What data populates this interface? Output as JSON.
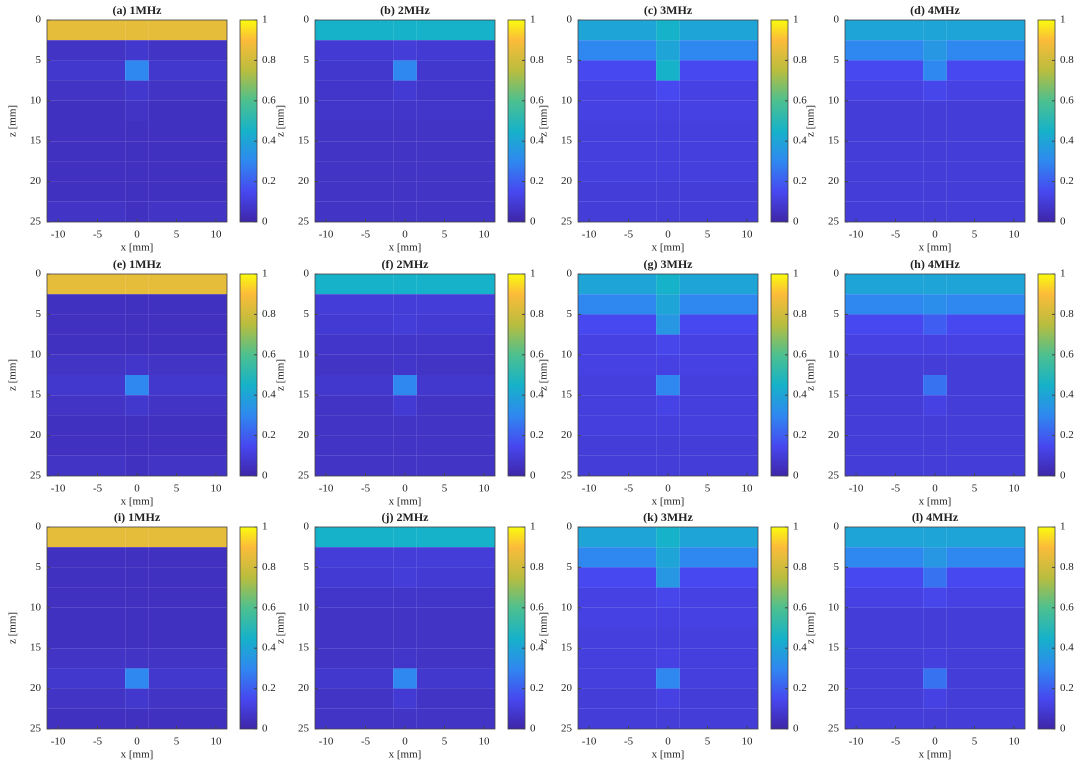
{
  "chart_data": [
    {
      "type": "heatmap",
      "title": "(a) 1MHz",
      "xlabel": "x [mm]",
      "ylabel": "z [mm]",
      "xlim": [
        -11.4,
        11.4
      ],
      "ylim": [
        0,
        25
      ],
      "yreverse": true,
      "xticks": [
        -10,
        -5,
        0,
        5,
        10
      ],
      "yticks": [
        0,
        5,
        10,
        15,
        20,
        25
      ],
      "clim": [
        0,
        1
      ],
      "cticks": [
        0,
        0.2,
        0.4,
        0.6,
        0.8,
        1
      ],
      "xbins": [
        -11.4,
        -1.5,
        1.5,
        11.4
      ],
      "ybins": [
        0,
        2.5,
        5,
        7.5,
        10,
        12.5,
        15,
        17.5,
        20,
        22.5,
        25
      ],
      "values": [
        [
          0.85,
          0.85,
          0.85
        ],
        [
          0.06,
          0.08,
          0.06
        ],
        [
          0.08,
          0.3,
          0.08
        ],
        [
          0.06,
          0.08,
          0.06
        ],
        [
          0.05,
          0.06,
          0.05
        ],
        [
          0.05,
          0.05,
          0.05
        ],
        [
          0.05,
          0.05,
          0.05
        ],
        [
          0.05,
          0.05,
          0.05
        ],
        [
          0.05,
          0.05,
          0.05
        ],
        [
          0.06,
          0.05,
          0.06
        ]
      ]
    },
    {
      "type": "heatmap",
      "title": "(b) 2MHz",
      "xlabel": "x [mm]",
      "ylabel": "z [mm]",
      "xlim": [
        -11.4,
        11.4
      ],
      "ylim": [
        0,
        25
      ],
      "yreverse": true,
      "xticks": [
        -10,
        -5,
        0,
        5,
        10
      ],
      "yticks": [
        0,
        5,
        10,
        15,
        20,
        25
      ],
      "clim": [
        0,
        1
      ],
      "cticks": [
        0,
        0.2,
        0.4,
        0.6,
        0.8,
        1
      ],
      "xbins": [
        -11.4,
        -1.5,
        1.5,
        11.4
      ],
      "ybins": [
        0,
        2.5,
        5,
        7.5,
        10,
        12.5,
        15,
        17.5,
        20,
        22.5,
        25
      ],
      "values": [
        [
          0.45,
          0.45,
          0.45
        ],
        [
          0.09,
          0.1,
          0.09
        ],
        [
          0.08,
          0.3,
          0.08
        ],
        [
          0.07,
          0.09,
          0.07
        ],
        [
          0.07,
          0.07,
          0.07
        ],
        [
          0.06,
          0.06,
          0.06
        ],
        [
          0.06,
          0.06,
          0.06
        ],
        [
          0.06,
          0.06,
          0.06
        ],
        [
          0.06,
          0.06,
          0.06
        ],
        [
          0.06,
          0.06,
          0.06
        ]
      ]
    },
    {
      "type": "heatmap",
      "title": "(c) 3MHz",
      "xlabel": "x [mm]",
      "ylabel": "z [mm]",
      "xlim": [
        -11.4,
        11.4
      ],
      "ylim": [
        0,
        25
      ],
      "yreverse": true,
      "xticks": [
        -10,
        -5,
        0,
        5,
        10
      ],
      "yticks": [
        0,
        5,
        10,
        15,
        20,
        25
      ],
      "clim": [
        0,
        1
      ],
      "cticks": [
        0,
        0.2,
        0.4,
        0.6,
        0.8,
        1
      ],
      "xbins": [
        -11.4,
        -1.5,
        1.5,
        11.4
      ],
      "ybins": [
        0,
        2.5,
        5,
        7.5,
        10,
        12.5,
        15,
        17.5,
        20,
        22.5,
        25
      ],
      "values": [
        [
          0.4,
          0.45,
          0.4
        ],
        [
          0.3,
          0.4,
          0.3
        ],
        [
          0.15,
          0.45,
          0.15
        ],
        [
          0.12,
          0.15,
          0.12
        ],
        [
          0.12,
          0.12,
          0.12
        ],
        [
          0.11,
          0.11,
          0.11
        ],
        [
          0.11,
          0.11,
          0.11
        ],
        [
          0.11,
          0.11,
          0.11
        ],
        [
          0.1,
          0.1,
          0.1
        ],
        [
          0.1,
          0.1,
          0.1
        ]
      ]
    },
    {
      "type": "heatmap",
      "title": "(d) 4MHz",
      "xlabel": "x [mm]",
      "ylabel": "z [mm]",
      "xlim": [
        -11.4,
        11.4
      ],
      "ylim": [
        0,
        25
      ],
      "yreverse": true,
      "xticks": [
        -10,
        -5,
        0,
        5,
        10
      ],
      "yticks": [
        0,
        5,
        10,
        15,
        20,
        25
      ],
      "clim": [
        0,
        1
      ],
      "cticks": [
        0,
        0.2,
        0.4,
        0.6,
        0.8,
        1
      ],
      "xbins": [
        -11.4,
        -1.5,
        1.5,
        11.4
      ],
      "ybins": [
        0,
        2.5,
        5,
        7.5,
        10,
        12.5,
        15,
        17.5,
        20,
        22.5,
        25
      ],
      "values": [
        [
          0.4,
          0.4,
          0.4
        ],
        [
          0.3,
          0.35,
          0.3
        ],
        [
          0.15,
          0.3,
          0.15
        ],
        [
          0.12,
          0.14,
          0.12
        ],
        [
          0.1,
          0.1,
          0.1
        ],
        [
          0.1,
          0.1,
          0.1
        ],
        [
          0.1,
          0.1,
          0.1
        ],
        [
          0.1,
          0.1,
          0.1
        ],
        [
          0.1,
          0.1,
          0.1
        ],
        [
          0.1,
          0.1,
          0.1
        ]
      ]
    },
    {
      "type": "heatmap",
      "title": "(e) 1MHz",
      "xlabel": "x [mm]",
      "ylabel": "z [mm]",
      "xlim": [
        -11.4,
        11.4
      ],
      "ylim": [
        0,
        25
      ],
      "yreverse": true,
      "xticks": [
        -10,
        -5,
        0,
        5,
        10
      ],
      "yticks": [
        0,
        5,
        10,
        15,
        20,
        25
      ],
      "clim": [
        0,
        1
      ],
      "cticks": [
        0,
        0.2,
        0.4,
        0.6,
        0.8,
        1
      ],
      "xbins": [
        -11.4,
        -1.5,
        1.5,
        11.4
      ],
      "ybins": [
        0,
        2.5,
        5,
        7.5,
        10,
        12.5,
        15,
        17.5,
        20,
        22.5,
        25
      ],
      "values": [
        [
          0.85,
          0.85,
          0.85
        ],
        [
          0.05,
          0.05,
          0.05
        ],
        [
          0.05,
          0.05,
          0.05
        ],
        [
          0.05,
          0.05,
          0.05
        ],
        [
          0.06,
          0.07,
          0.06
        ],
        [
          0.08,
          0.3,
          0.08
        ],
        [
          0.06,
          0.08,
          0.06
        ],
        [
          0.05,
          0.05,
          0.05
        ],
        [
          0.05,
          0.05,
          0.05
        ],
        [
          0.06,
          0.05,
          0.06
        ]
      ]
    },
    {
      "type": "heatmap",
      "title": "(f) 2MHz",
      "xlabel": "x [mm]",
      "ylabel": "z [mm]",
      "xlim": [
        -11.4,
        11.4
      ],
      "ylim": [
        0,
        25
      ],
      "yreverse": true,
      "xticks": [
        -10,
        -5,
        0,
        5,
        10
      ],
      "yticks": [
        0,
        5,
        10,
        15,
        20,
        25
      ],
      "clim": [
        0,
        1
      ],
      "cticks": [
        0,
        0.2,
        0.4,
        0.6,
        0.8,
        1
      ],
      "xbins": [
        -11.4,
        -1.5,
        1.5,
        11.4
      ],
      "ybins": [
        0,
        2.5,
        5,
        7.5,
        10,
        12.5,
        15,
        17.5,
        20,
        22.5,
        25
      ],
      "values": [
        [
          0.45,
          0.45,
          0.45
        ],
        [
          0.1,
          0.1,
          0.1
        ],
        [
          0.09,
          0.1,
          0.09
        ],
        [
          0.07,
          0.07,
          0.07
        ],
        [
          0.06,
          0.07,
          0.06
        ],
        [
          0.08,
          0.3,
          0.08
        ],
        [
          0.06,
          0.09,
          0.06
        ],
        [
          0.06,
          0.06,
          0.06
        ],
        [
          0.06,
          0.06,
          0.06
        ],
        [
          0.06,
          0.06,
          0.06
        ]
      ]
    },
    {
      "type": "heatmap",
      "title": "(g) 3MHz",
      "xlabel": "x [mm]",
      "ylabel": "z [mm]",
      "xlim": [
        -11.4,
        11.4
      ],
      "ylim": [
        0,
        25
      ],
      "yreverse": true,
      "xticks": [
        -10,
        -5,
        0,
        5,
        10
      ],
      "yticks": [
        0,
        5,
        10,
        15,
        20,
        25
      ],
      "clim": [
        0,
        1
      ],
      "cticks": [
        0,
        0.2,
        0.4,
        0.6,
        0.8,
        1
      ],
      "xbins": [
        -11.4,
        -1.5,
        1.5,
        11.4
      ],
      "ybins": [
        0,
        2.5,
        5,
        7.5,
        10,
        12.5,
        15,
        17.5,
        20,
        22.5,
        25
      ],
      "values": [
        [
          0.4,
          0.45,
          0.4
        ],
        [
          0.3,
          0.4,
          0.3
        ],
        [
          0.15,
          0.35,
          0.15
        ],
        [
          0.12,
          0.14,
          0.12
        ],
        [
          0.12,
          0.12,
          0.12
        ],
        [
          0.11,
          0.3,
          0.11
        ],
        [
          0.11,
          0.13,
          0.11
        ],
        [
          0.11,
          0.11,
          0.11
        ],
        [
          0.1,
          0.1,
          0.1
        ],
        [
          0.1,
          0.1,
          0.1
        ]
      ]
    },
    {
      "type": "heatmap",
      "title": "(h) 4MHz",
      "xlabel": "x [mm]",
      "ylabel": "z [mm]",
      "xlim": [
        -11.4,
        11.4
      ],
      "ylim": [
        0,
        25
      ],
      "yreverse": true,
      "xticks": [
        -10,
        -5,
        0,
        5,
        10
      ],
      "yticks": [
        0,
        5,
        10,
        15,
        20,
        25
      ],
      "clim": [
        0,
        1
      ],
      "cticks": [
        0,
        0.2,
        0.4,
        0.6,
        0.8,
        1
      ],
      "xbins": [
        -11.4,
        -1.5,
        1.5,
        11.4
      ],
      "ybins": [
        0,
        2.5,
        5,
        7.5,
        10,
        12.5,
        15,
        17.5,
        20,
        22.5,
        25
      ],
      "values": [
        [
          0.4,
          0.4,
          0.4
        ],
        [
          0.3,
          0.32,
          0.3
        ],
        [
          0.15,
          0.2,
          0.15
        ],
        [
          0.12,
          0.12,
          0.12
        ],
        [
          0.1,
          0.1,
          0.1
        ],
        [
          0.1,
          0.25,
          0.1
        ],
        [
          0.1,
          0.12,
          0.1
        ],
        [
          0.1,
          0.1,
          0.1
        ],
        [
          0.1,
          0.1,
          0.1
        ],
        [
          0.1,
          0.1,
          0.1
        ]
      ]
    },
    {
      "type": "heatmap",
      "title": "(i) 1MHz",
      "xlabel": "x [mm]",
      "ylabel": "z [mm]",
      "xlim": [
        -11.4,
        11.4
      ],
      "ylim": [
        0,
        25
      ],
      "yreverse": true,
      "xticks": [
        -10,
        -5,
        0,
        5,
        10
      ],
      "yticks": [
        0,
        5,
        10,
        15,
        20,
        25
      ],
      "clim": [
        0,
        1
      ],
      "cticks": [
        0,
        0.2,
        0.4,
        0.6,
        0.8,
        1
      ],
      "xbins": [
        -11.4,
        -1.5,
        1.5,
        11.4
      ],
      "ybins": [
        0,
        2.5,
        5,
        7.5,
        10,
        12.5,
        15,
        17.5,
        20,
        22.5,
        25
      ],
      "values": [
        [
          0.85,
          0.85,
          0.85
        ],
        [
          0.05,
          0.05,
          0.05
        ],
        [
          0.05,
          0.05,
          0.05
        ],
        [
          0.05,
          0.05,
          0.05
        ],
        [
          0.05,
          0.05,
          0.05
        ],
        [
          0.05,
          0.05,
          0.05
        ],
        [
          0.06,
          0.06,
          0.06
        ],
        [
          0.08,
          0.3,
          0.08
        ],
        [
          0.06,
          0.08,
          0.06
        ],
        [
          0.05,
          0.05,
          0.05
        ]
      ]
    },
    {
      "type": "heatmap",
      "title": "(j) 2MHz",
      "xlabel": "x [mm]",
      "ylabel": "z [mm]",
      "xlim": [
        -11.4,
        11.4
      ],
      "ylim": [
        0,
        25
      ],
      "yreverse": true,
      "xticks": [
        -10,
        -5,
        0,
        5,
        10
      ],
      "yticks": [
        0,
        5,
        10,
        15,
        20,
        25
      ],
      "clim": [
        0,
        1
      ],
      "cticks": [
        0,
        0.2,
        0.4,
        0.6,
        0.8,
        1
      ],
      "xbins": [
        -11.4,
        -1.5,
        1.5,
        11.4
      ],
      "ybins": [
        0,
        2.5,
        5,
        7.5,
        10,
        12.5,
        15,
        17.5,
        20,
        22.5,
        25
      ],
      "values": [
        [
          0.45,
          0.45,
          0.45
        ],
        [
          0.1,
          0.1,
          0.1
        ],
        [
          0.09,
          0.1,
          0.09
        ],
        [
          0.07,
          0.07,
          0.07
        ],
        [
          0.06,
          0.06,
          0.06
        ],
        [
          0.06,
          0.06,
          0.06
        ],
        [
          0.06,
          0.07,
          0.06
        ],
        [
          0.08,
          0.3,
          0.08
        ],
        [
          0.06,
          0.09,
          0.06
        ],
        [
          0.06,
          0.06,
          0.06
        ]
      ]
    },
    {
      "type": "heatmap",
      "title": "(k) 3MHz",
      "xlabel": "x [mm]",
      "ylabel": "z [mm]",
      "xlim": [
        -11.4,
        11.4
      ],
      "ylim": [
        0,
        25
      ],
      "yreverse": true,
      "xticks": [
        -10,
        -5,
        0,
        5,
        10
      ],
      "yticks": [
        0,
        5,
        10,
        15,
        20,
        25
      ],
      "clim": [
        0,
        1
      ],
      "cticks": [
        0,
        0.2,
        0.4,
        0.6,
        0.8,
        1
      ],
      "xbins": [
        -11.4,
        -1.5,
        1.5,
        11.4
      ],
      "ybins": [
        0,
        2.5,
        5,
        7.5,
        10,
        12.5,
        15,
        17.5,
        20,
        22.5,
        25
      ],
      "values": [
        [
          0.4,
          0.45,
          0.4
        ],
        [
          0.3,
          0.4,
          0.3
        ],
        [
          0.15,
          0.35,
          0.15
        ],
        [
          0.12,
          0.14,
          0.12
        ],
        [
          0.12,
          0.12,
          0.12
        ],
        [
          0.11,
          0.11,
          0.11
        ],
        [
          0.11,
          0.12,
          0.11
        ],
        [
          0.11,
          0.3,
          0.11
        ],
        [
          0.1,
          0.12,
          0.1
        ],
        [
          0.1,
          0.1,
          0.1
        ]
      ]
    },
    {
      "type": "heatmap",
      "title": "(l) 4MHz",
      "xlabel": "x [mm]",
      "ylabel": "z [mm]",
      "xlim": [
        -11.4,
        11.4
      ],
      "ylim": [
        0,
        25
      ],
      "yreverse": true,
      "xticks": [
        -10,
        -5,
        0,
        5,
        10
      ],
      "yticks": [
        0,
        5,
        10,
        15,
        20,
        25
      ],
      "clim": [
        0,
        1
      ],
      "cticks": [
        0,
        0.2,
        0.4,
        0.6,
        0.8,
        1
      ],
      "xbins": [
        -11.4,
        -1.5,
        1.5,
        11.4
      ],
      "ybins": [
        0,
        2.5,
        5,
        7.5,
        10,
        12.5,
        15,
        17.5,
        20,
        22.5,
        25
      ],
      "values": [
        [
          0.4,
          0.4,
          0.4
        ],
        [
          0.3,
          0.35,
          0.3
        ],
        [
          0.15,
          0.25,
          0.15
        ],
        [
          0.12,
          0.14,
          0.12
        ],
        [
          0.1,
          0.1,
          0.1
        ],
        [
          0.1,
          0.1,
          0.1
        ],
        [
          0.1,
          0.11,
          0.1
        ],
        [
          0.1,
          0.25,
          0.1
        ],
        [
          0.1,
          0.12,
          0.1
        ],
        [
          0.1,
          0.1,
          0.1
        ]
      ]
    }
  ]
}
